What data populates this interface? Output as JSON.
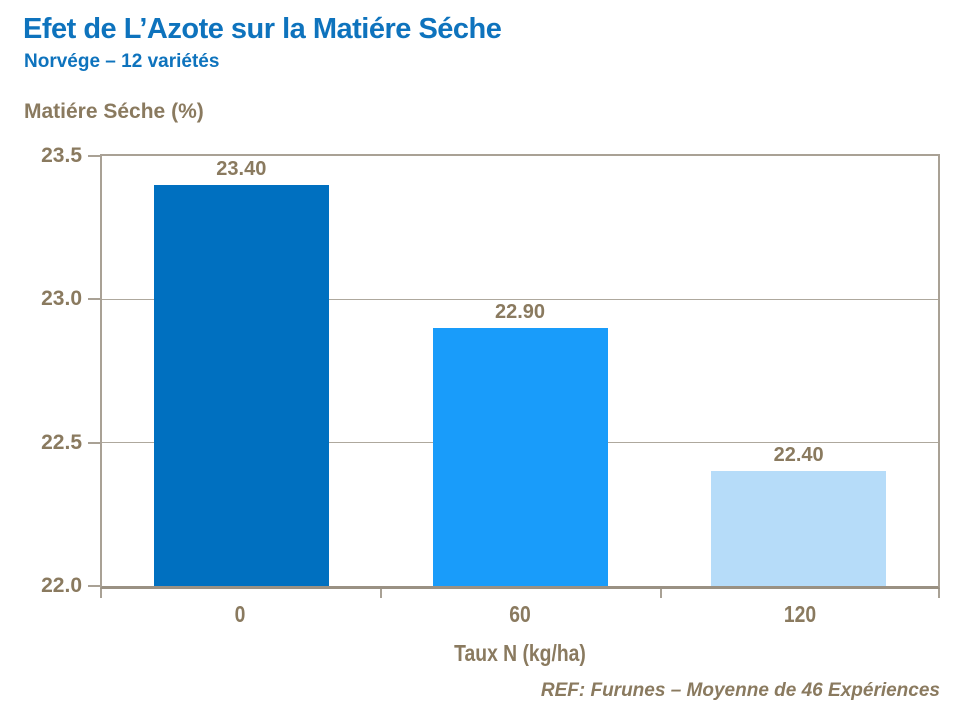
{
  "slide": {
    "title": "Efet de L’Azote sur la Matiére Séche",
    "subtitle": "Norvége – 12 variétés",
    "ref_note": "REF: Furunes – Moyenne de 46 Expériences"
  },
  "chart_data": {
    "type": "bar",
    "title": "Efet de L’Azote sur la Matiére Séche — Norvége – 12 variétés",
    "ylabel": "Matiére Séche (%)",
    "xlabel": "Taux N (kg/ha)",
    "categories": [
      "0",
      "60",
      "120"
    ],
    "values": [
      23.4,
      22.9,
      22.4
    ],
    "data_labels": [
      "23.40",
      "22.90",
      "22.40"
    ],
    "ylim": [
      22.0,
      23.5
    ],
    "yticks": [
      23.5,
      23.0,
      22.5,
      22.0
    ],
    "ytick_labels": [
      "23.5",
      "23.0",
      "22.5",
      "22.0"
    ],
    "grid": true,
    "legend": false,
    "annotation": "REF: Furunes – Moyenne de 46 Expériences",
    "bar_colors": [
      "#0070C0",
      "#199CFA",
      "#B6DCF9"
    ],
    "colors": {
      "accent_blue": "#0E73BD",
      "text_brown": "#8A7A5F",
      "frame": "#A9A195",
      "gridline": "#AEA89D",
      "axis": "#9A9183"
    }
  }
}
